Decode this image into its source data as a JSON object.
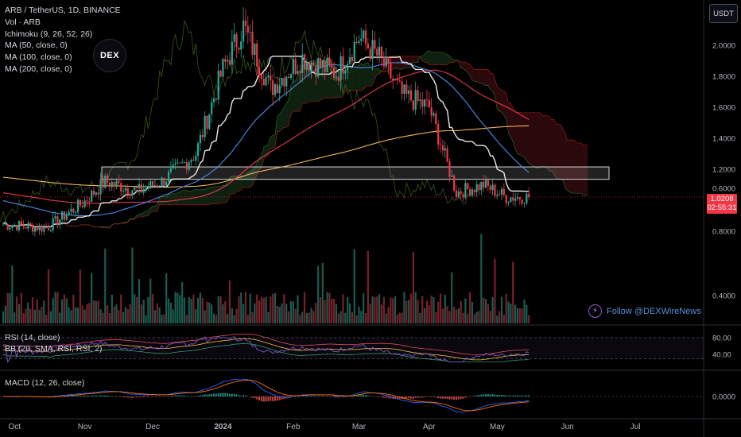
{
  "legend": {
    "symbol": "ARB / TetherUS, 1D, BINANCE",
    "vol": "Vol · ARB",
    "ichimoku": "Ichimoku (9, 26, 52, 26)",
    "ma50": "MA (50, close, 0)",
    "ma100": "MA (100, close, 0)",
    "ma200": "MA (200, close, 0)"
  },
  "currency_button": "USDT",
  "logo_text": "DEX",
  "last_price": "1.0208",
  "countdown": "02:55:31",
  "follow_text": "Follow @DEXWireNews",
  "rsi_legend": {
    "rsi": "RSI (14, close)",
    "bb": "BB (20, SMA, RSI, RSI, 2)"
  },
  "macd_legend": "MACD (12, 26, close)",
  "colors": {
    "up": "#22ab94",
    "down": "#f23645",
    "ma50": "#4b8ce8",
    "ma100": "#e53950",
    "ma200": "#f0b45a",
    "kijun": "#e8e8e8",
    "rsi_line": "#7e57c2",
    "bb_line": "#f0c040"
  },
  "chart_data": {
    "type": "line",
    "title": "ARB / TetherUS, 1D, BINANCE",
    "x_ticks": [
      "Oct",
      "Nov",
      "Dec",
      "2024",
      "Feb",
      "Mar",
      "Apr",
      "May",
      "Jun",
      "Jul"
    ],
    "y_ticks": [
      "2.0000",
      "1.8000",
      "1.6000",
      "1.4000",
      "1.2000",
      "0.8000",
      "0.6000",
      "0.4000"
    ],
    "ylim": [
      0.3,
      2.2
    ],
    "rsi_ticks": [
      "80.00",
      "40.00"
    ],
    "rsi_ylim": [
      20,
      90
    ],
    "macd_ticks": [
      "0.0000"
    ],
    "resistance_zone": [
      1.135,
      1.215
    ],
    "approximate_close_path": [
      {
        "x": "Oct 1",
        "y": 0.84
      },
      {
        "x": "Oct 15",
        "y": 0.82
      },
      {
        "x": "Oct 31",
        "y": 0.98
      },
      {
        "x": "Nov 10",
        "y": 1.12
      },
      {
        "x": "Nov 25",
        "y": 1.06
      },
      {
        "x": "Dec 5",
        "y": 1.12
      },
      {
        "x": "Dec 20",
        "y": 1.3
      },
      {
        "x": "Jan 1",
        "y": 1.85
      },
      {
        "x": "Jan 10",
        "y": 2.12
      },
      {
        "x": "Jan 22",
        "y": 1.72
      },
      {
        "x": "Feb 5",
        "y": 1.92
      },
      {
        "x": "Feb 20",
        "y": 1.82
      },
      {
        "x": "Mar 1",
        "y": 2.05
      },
      {
        "x": "Mar 10",
        "y": 1.92
      },
      {
        "x": "Mar 20",
        "y": 1.68
      },
      {
        "x": "Apr 1",
        "y": 1.6
      },
      {
        "x": "Apr 13",
        "y": 1.05
      },
      {
        "x": "Apr 25",
        "y": 1.1
      },
      {
        "x": "May 5",
        "y": 1.02
      },
      {
        "x": "May 15",
        "y": 1.02
      }
    ]
  }
}
